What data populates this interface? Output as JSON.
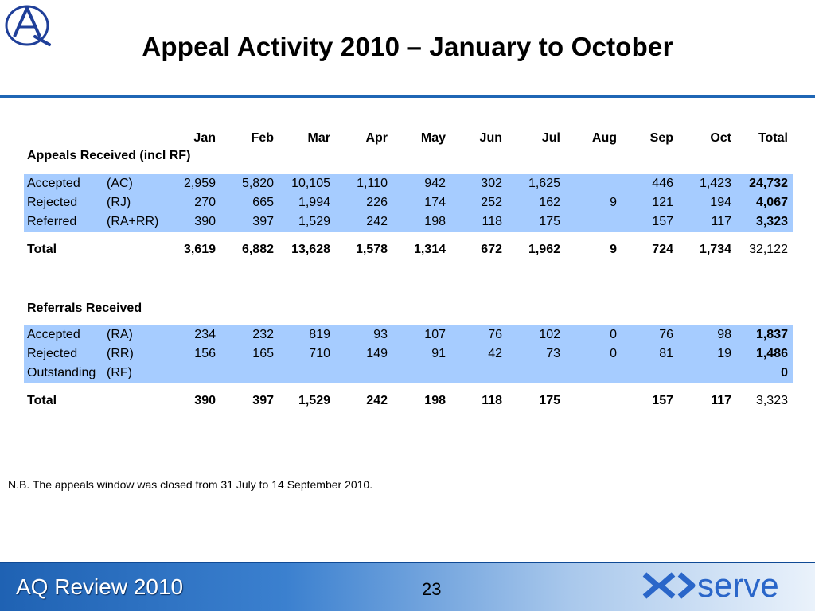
{
  "header": {
    "title": "Appeal Activity 2010 – January to October"
  },
  "table": {
    "columns": [
      "Jan",
      "Feb",
      "Mar",
      "Apr",
      "May",
      "Jun",
      "Jul",
      "Aug",
      "Sep",
      "Oct",
      "Total"
    ],
    "appeals": {
      "title": "Appeals Received (incl RF)",
      "rows": [
        {
          "label": "Accepted",
          "code": "(AC)",
          "values": [
            "2,959",
            "5,820",
            "10,105",
            "1,110",
            "942",
            "302",
            "1,625",
            "",
            "446",
            "1,423",
            "24,732"
          ]
        },
        {
          "label": "Rejected",
          "code": "(RJ)",
          "values": [
            "270",
            "665",
            "1,994",
            "226",
            "174",
            "252",
            "162",
            "9",
            "121",
            "194",
            "4,067"
          ]
        },
        {
          "label": "Referred",
          "code": "(RA+RR)",
          "values": [
            "390",
            "397",
            "1,529",
            "242",
            "198",
            "118",
            "175",
            "",
            "157",
            "117",
            "3,323"
          ]
        }
      ],
      "total": {
        "label": "Total",
        "values": [
          "3,619",
          "6,882",
          "13,628",
          "1,578",
          "1,314",
          "672",
          "1,962",
          "9",
          "724",
          "1,734",
          "32,122"
        ]
      }
    },
    "referrals": {
      "title": "Referrals Received",
      "rows": [
        {
          "label": "Accepted",
          "code": "(RA)",
          "values": [
            "234",
            "232",
            "819",
            "93",
            "107",
            "76",
            "102",
            "0",
            "76",
            "98",
            "1,837"
          ]
        },
        {
          "label": "Rejected",
          "code": "(RR)",
          "values": [
            "156",
            "165",
            "710",
            "149",
            "91",
            "42",
            "73",
            "0",
            "81",
            "19",
            "1,486"
          ]
        },
        {
          "label": "Outstanding",
          "code": "(RF)",
          "values": [
            "",
            "",
            "",
            "",
            "",
            "",
            "",
            "",
            "",
            "",
            "0"
          ]
        }
      ],
      "total": {
        "label": "Total",
        "values": [
          "390",
          "397",
          "1,529",
          "242",
          "198",
          "118",
          "175",
          "",
          "157",
          "117",
          "3,323"
        ]
      }
    }
  },
  "note": "N.B. The appeals window was closed from 31 July to 14 September 2010.",
  "footer": {
    "title": "AQ Review 2010",
    "page_number": "23",
    "brand": "xoserve"
  },
  "colors": {
    "accent": "#1f66b5",
    "row_highlight": "#a6ccff"
  }
}
